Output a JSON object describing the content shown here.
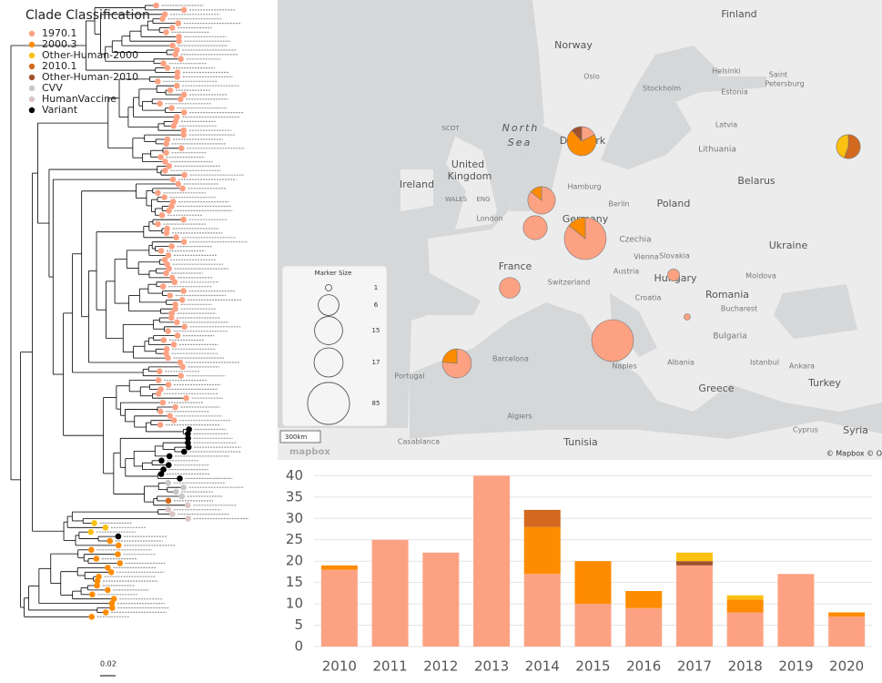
{
  "legend": {
    "title": "Clade Classification",
    "other_clades": [
      {
        "name": "CVV",
        "color": "#c8c8c8"
      },
      {
        "name": "HumanVaccine",
        "color": "#dcc6c6"
      },
      {
        "name": "Variant",
        "color": "#000000"
      }
    ]
  },
  "tree": {
    "scale_label": "0.02",
    "tip_groups": [
      {
        "clade": "1970.1",
        "count": 95
      },
      {
        "clade": "Variant",
        "count": 12
      },
      {
        "clade": "CVV",
        "count": 4
      },
      {
        "clade": "2010.1",
        "count": 1
      },
      {
        "clade": "HumanVaccine",
        "count": 4
      },
      {
        "clade": "Other-Human-2000",
        "count": 3
      },
      {
        "clade": "Variant",
        "count": 1
      },
      {
        "clade": "2000.3",
        "count": 18
      }
    ]
  },
  "map": {
    "labels": [
      "Finland",
      "Norway",
      "Oslo",
      "Stockholm",
      "Helsinki",
      "Saint",
      "Petersburg",
      "Estonia",
      "Latvia",
      "North",
      "Sea",
      "SCOT",
      "Denmark",
      "Lithuania",
      "United",
      "Kingdom",
      "Ireland",
      "WALES",
      "ENG",
      "London",
      "Hamburg",
      "Berlin",
      "Poland",
      "Belarus",
      "Germany",
      "Czechia",
      "Ukraine",
      "Slovakia",
      "Vienna",
      "Austria",
      "France",
      "Hungary",
      "Moldova",
      "Switzerland",
      "Croatia",
      "Romania",
      "Bucharest",
      "Bulgaria",
      "Barcelona",
      "Portugal",
      "Albania",
      "Naples",
      "Istanbul",
      "Ankara",
      "Turkey",
      "Greece",
      "Algiers",
      "Tunisia",
      "Cyprus",
      "Syria",
      "Casablanca"
    ],
    "pies": [
      {
        "values": [
          3,
          12,
          0,
          2,
          0
        ]
      },
      {
        "values": [
          0,
          0,
          5,
          0,
          4
        ]
      },
      {
        "values": [
          12,
          2,
          0,
          0,
          0
        ]
      },
      {
        "values": [
          9,
          0,
          0,
          0,
          0
        ]
      },
      {
        "values": [
          72,
          12,
          0,
          0,
          0
        ]
      },
      {
        "values": [
          6,
          0,
          0,
          0,
          0
        ]
      },
      {
        "values": [
          2,
          0,
          0,
          0,
          0
        ]
      },
      {
        "values": [
          1,
          0,
          0,
          0,
          0
        ]
      },
      {
        "values": [
          84,
          0,
          0,
          0,
          0
        ]
      },
      {
        "values": [
          13,
          4,
          0,
          0,
          0
        ]
      }
    ],
    "marker_title": "Marker Size",
    "marker_sizes": [
      1,
      6,
      15,
      17,
      85
    ],
    "scale_label": "300km",
    "logo": "mapbox",
    "attribution": "© Mapbox © O"
  },
  "chart_data": {
    "type": "bar",
    "stacked": true,
    "categories": [
      "2010",
      "2011",
      "2012",
      "2013",
      "2014",
      "2015",
      "2016",
      "2017",
      "2018",
      "2019",
      "2020"
    ],
    "series": [
      {
        "name": "1970.1",
        "color": "#fca283",
        "values": [
          18,
          25,
          22,
          40,
          17,
          10,
          9,
          19,
          8,
          17,
          7
        ]
      },
      {
        "name": "2000.3",
        "color": "#ff8c00",
        "values": [
          1,
          0,
          0,
          0,
          11,
          10,
          4,
          0,
          3,
          0,
          1
        ]
      },
      {
        "name": "2010.1",
        "color": "#d2691e",
        "values": [
          0,
          0,
          0,
          0,
          4,
          0,
          0,
          0,
          0,
          0,
          0
        ]
      },
      {
        "name": "Other-Human-2010",
        "color": "#a0522d",
        "values": [
          0,
          0,
          0,
          0,
          0,
          0,
          0,
          1,
          0,
          0,
          0
        ]
      },
      {
        "name": "Other-Human-2000",
        "color": "#fcc010",
        "values": [
          0,
          0,
          0,
          0,
          0,
          0,
          0,
          2,
          1,
          0,
          0
        ]
      }
    ],
    "ylim": [
      0,
      42
    ],
    "yticks": [
      0,
      5,
      10,
      15,
      20,
      25,
      30,
      35,
      40
    ],
    "grid": true
  }
}
